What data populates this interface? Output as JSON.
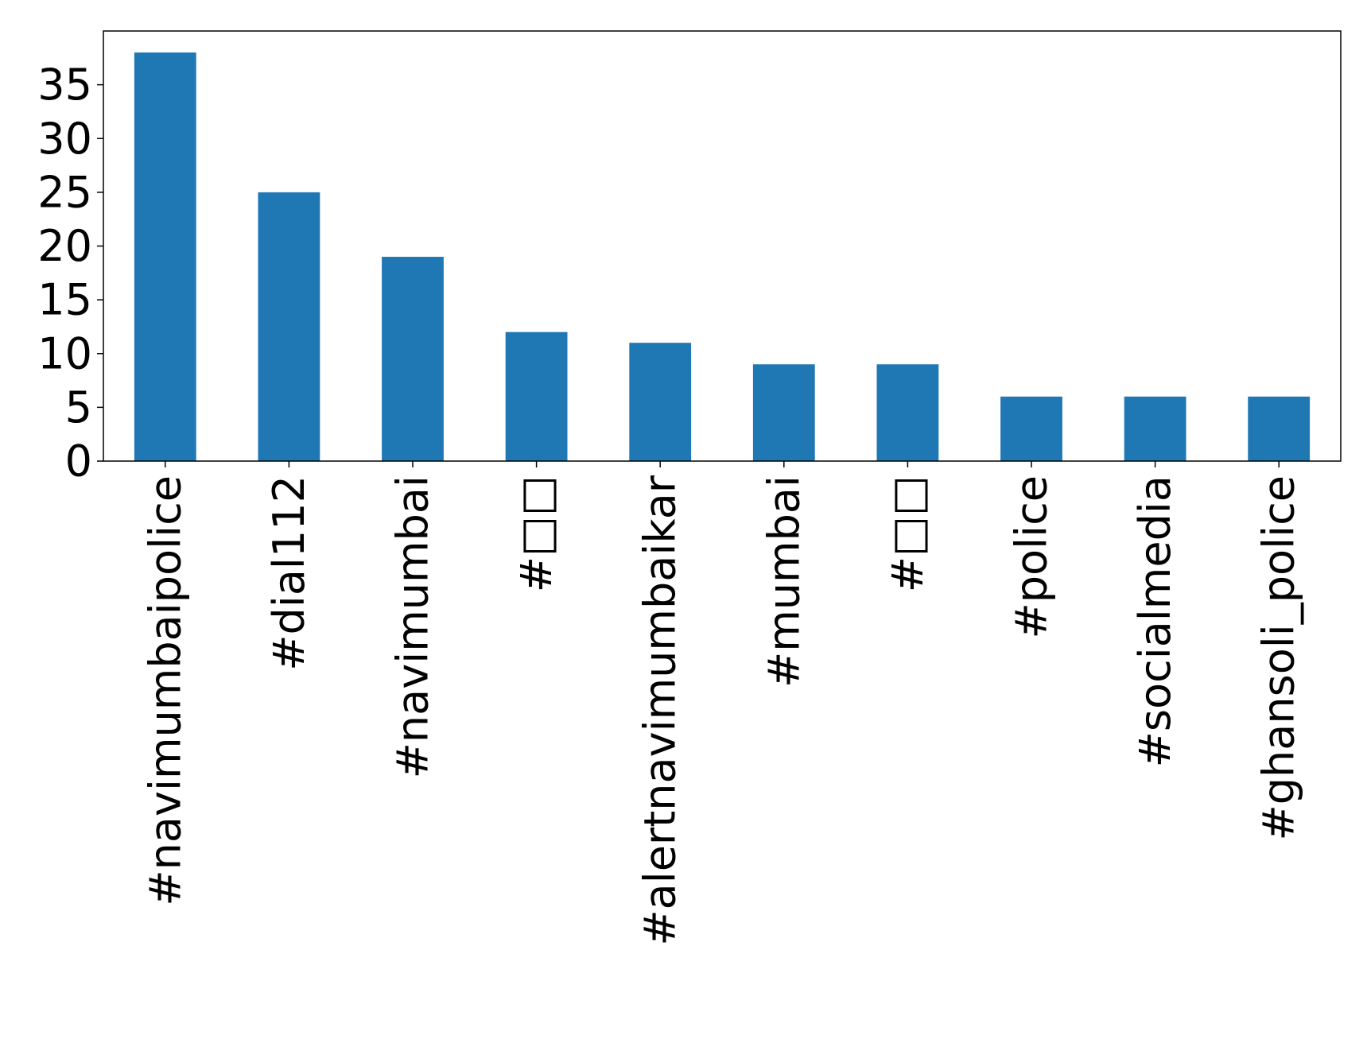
{
  "chart_data": {
    "type": "bar",
    "title": "",
    "xlabel": "",
    "ylabel": "",
    "categories": [
      "#navimumbaipolice",
      "#dial112",
      "#navimumbai",
      "#□□",
      "#alertnavimumbaikar",
      "#mumbai",
      "#□□",
      "#police",
      "#socialmedia",
      "#ghansoli_police"
    ],
    "values": [
      38,
      25,
      19,
      12,
      11,
      9,
      9,
      6,
      6,
      6
    ],
    "ylim": [
      0,
      40
    ],
    "yticks": [
      0,
      5,
      10,
      15,
      20,
      25,
      30,
      35
    ],
    "bar_color": "#1f77b4",
    "grid": false,
    "legend": false
  }
}
